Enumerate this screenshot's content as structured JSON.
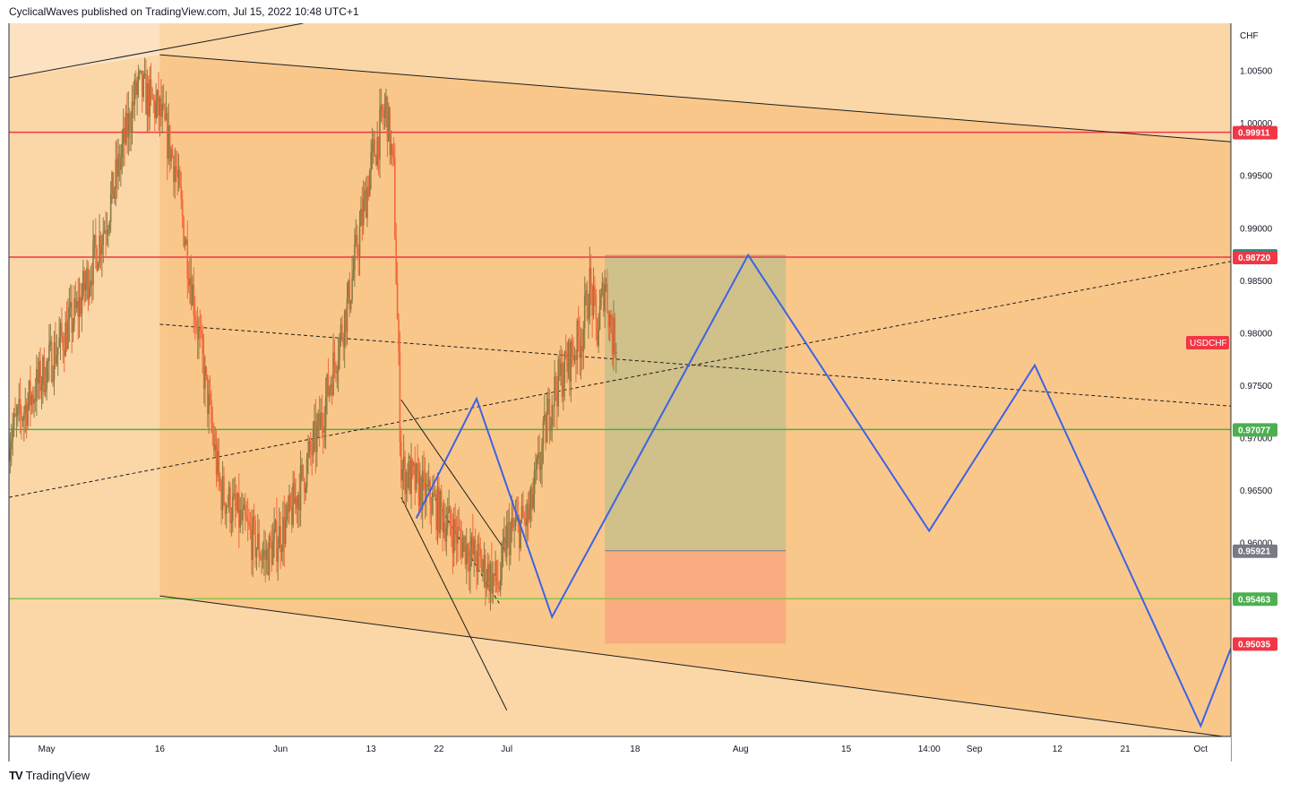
{
  "header": {
    "text": "CyclicalWaves published on TradingView.com, Jul 15, 2022 10:48 UTC+1"
  },
  "footer": {
    "logo": "TV",
    "brand": "TradingView"
  },
  "chart_data": {
    "type": "candlestick",
    "symbol": "USDCHF",
    "currency": "CHF",
    "price_range": [
      0.9415,
      1.0095
    ],
    "y_ticks": [
      1.005,
      1.0,
      0.995,
      0.99,
      0.985,
      0.98,
      0.975,
      0.97,
      0.965,
      0.96
    ],
    "y_tick_labels": [
      "1.00500",
      "1.00000",
      "0.99500",
      "0.99000",
      "0.98500",
      "0.98000",
      "0.97500",
      "0.97000",
      "0.96500",
      "0.96000"
    ],
    "x_ticks": [
      "May",
      "16",
      "Jun",
      "13",
      "22",
      "Jul",
      "18",
      "Aug",
      "15",
      "14:00",
      "Sep",
      "12",
      "21",
      "Oct"
    ],
    "x_tick_dates": [
      "2022-05-01",
      "2022-05-16",
      "2022-06-01",
      "2022-06-13",
      "2022-06-22",
      "2022-07-01",
      "2022-07-18",
      "2022-08-01",
      "2022-08-15",
      "2022-08-26",
      "2022-09-01",
      "2022-09-12",
      "2022-09-21",
      "2022-10-01"
    ],
    "price_labels": [
      {
        "value": "0.99911",
        "color": "#f23645"
      },
      {
        "value": "0.98736",
        "color": "#089981"
      },
      {
        "value": "0.98720",
        "color": "#f23645"
      },
      {
        "value": "0.97077",
        "color": "#4caf50"
      },
      {
        "value": "0.95921",
        "color": "#787b86"
      },
      {
        "value": "0.95463",
        "color": "#4caf50"
      },
      {
        "value": "0.95035",
        "color": "#f23645"
      }
    ],
    "symbol_tag": {
      "text": "USDCHF",
      "value": 0.979,
      "color": "#f23645"
    },
    "horizontal_lines": [
      {
        "value": 0.99911,
        "color": "#f23645"
      },
      {
        "value": 0.9872,
        "color": "#f23645"
      },
      {
        "value": 0.97077,
        "color": "#4caf50"
      },
      {
        "value": 0.95463,
        "color": "#8bc34a"
      }
    ],
    "position": {
      "entry": 0.98736,
      "target": 0.95921,
      "stop": 0.95035,
      "start": "2022-07-14",
      "end": "2022-08-07"
    },
    "projection_path": [
      [
        "2022-06-19",
        0.9623
      ],
      [
        "2022-06-27",
        0.9737
      ],
      [
        "2022-07-07",
        0.9529
      ],
      [
        "2022-08-02",
        0.9874
      ],
      [
        "2022-08-26",
        0.9611
      ],
      [
        "2022-09-09",
        0.9769
      ],
      [
        "2022-10-01",
        0.9425
      ],
      [
        "2022-10-05",
        0.9499
      ]
    ],
    "colors": {
      "background": "#fbd7a8",
      "band": "#fac78a",
      "up": "#8a7a44",
      "down": "#ef6a3a",
      "projection": "#3b63e6",
      "target_zone": "#cdc08a",
      "stop_zone": "#f8ac7f"
    }
  }
}
